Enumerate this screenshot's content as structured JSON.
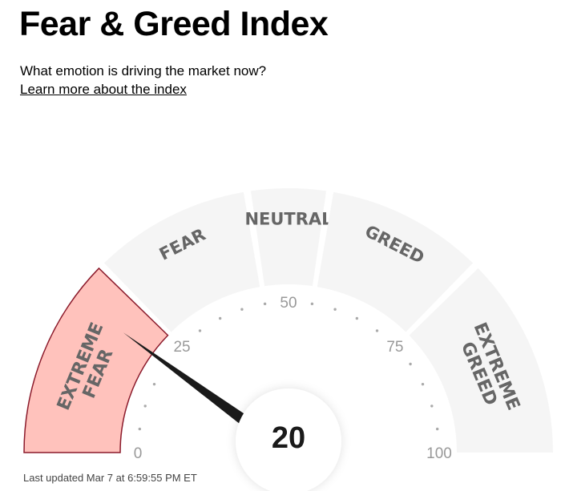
{
  "header": {
    "title": "Fear & Greed Index",
    "subtitle": "What emotion is driving the market now?",
    "learn_more_link": "Learn more about the index"
  },
  "gauge": {
    "value": 20,
    "min": 0,
    "max": 100,
    "active_segment": "extreme-fear",
    "segments": [
      {
        "id": "extreme-fear",
        "lines": [
          "EXTREME",
          "FEAR"
        ],
        "from": 0,
        "to": 25
      },
      {
        "id": "fear",
        "lines": [
          "FEAR"
        ],
        "from": 25,
        "to": 45
      },
      {
        "id": "neutral",
        "lines": [
          "NEUTRAL"
        ],
        "from": 45,
        "to": 55
      },
      {
        "id": "greed",
        "lines": [
          "GREED"
        ],
        "from": 55,
        "to": 75
      },
      {
        "id": "extreme-greed",
        "lines": [
          "EXTREME",
          "GREED"
        ],
        "from": 75,
        "to": 100
      }
    ],
    "tick_labels": [
      {
        "value": 0,
        "text": "0"
      },
      {
        "value": 25,
        "text": "25"
      },
      {
        "value": 50,
        "text": "50"
      },
      {
        "value": 75,
        "text": "75"
      },
      {
        "value": 100,
        "text": "100"
      }
    ],
    "colors": {
      "segment_fill": "#f5f5f5",
      "active_fill": "#ffc2bc",
      "active_stroke": "#8b1a2b",
      "needle": "#1a1a1a",
      "dots": "#aaaaaa"
    }
  },
  "footer": {
    "last_updated": "Last updated Mar 7 at 6:59:55 PM ET"
  }
}
